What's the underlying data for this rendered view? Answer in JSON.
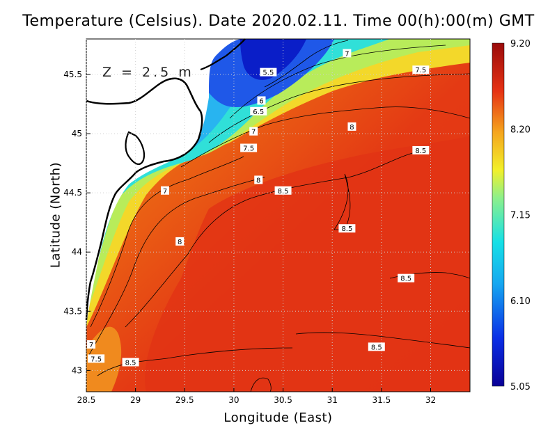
{
  "title": "Temperature (Celsius). Date 2020.02.11. Time 00(h):00(m) GMT",
  "depth_label": "Z = 2.5 m",
  "xlabel": "Longitude (East)",
  "ylabel": "Latitude (North)",
  "x_ticks": [
    "28.5",
    "29",
    "29.5",
    "30",
    "30.5",
    "31",
    "31.5",
    "32"
  ],
  "y_ticks": [
    "43",
    "43.5",
    "44",
    "44.5",
    "45",
    "45.5"
  ],
  "colorbar_ticks": [
    "9.20",
    "8.20",
    "7.15",
    "6.10",
    "5.05"
  ],
  "colors": {
    "cold": "#0a0096",
    "cyan": "#16e0e6",
    "yellow": "#f2f02a",
    "orange": "#f07a14",
    "red": "#e63214",
    "darkred": "#9a0b0b"
  },
  "contour_labels": [
    {
      "text": "7",
      "lon": 31.15,
      "lat": 45.68
    },
    {
      "text": "7.5",
      "lon": 31.9,
      "lat": 45.54
    },
    {
      "text": "5.5",
      "lon": 30.35,
      "lat": 45.52
    },
    {
      "text": "6",
      "lon": 30.28,
      "lat": 45.28
    },
    {
      "text": "6.5",
      "lon": 30.25,
      "lat": 45.19
    },
    {
      "text": "8",
      "lon": 31.2,
      "lat": 45.06
    },
    {
      "text": "7",
      "lon": 30.2,
      "lat": 45.02
    },
    {
      "text": "7.5",
      "lon": 30.15,
      "lat": 44.88
    },
    {
      "text": "8.5",
      "lon": 31.9,
      "lat": 44.86
    },
    {
      "text": "8",
      "lon": 30.25,
      "lat": 44.61
    },
    {
      "text": "8.5",
      "lon": 30.5,
      "lat": 44.52
    },
    {
      "text": "7",
      "lon": 29.3,
      "lat": 44.52
    },
    {
      "text": "8.5",
      "lon": 31.15,
      "lat": 44.2
    },
    {
      "text": "8",
      "lon": 29.45,
      "lat": 44.09
    },
    {
      "text": "8.5",
      "lon": 31.75,
      "lat": 43.78
    },
    {
      "text": "8.5",
      "lon": 31.45,
      "lat": 43.2
    },
    {
      "text": "7",
      "lon": 28.55,
      "lat": 43.22
    },
    {
      "text": "7.5",
      "lon": 28.6,
      "lat": 43.1
    },
    {
      "text": "8.5",
      "lon": 28.95,
      "lat": 43.07
    }
  ]
}
